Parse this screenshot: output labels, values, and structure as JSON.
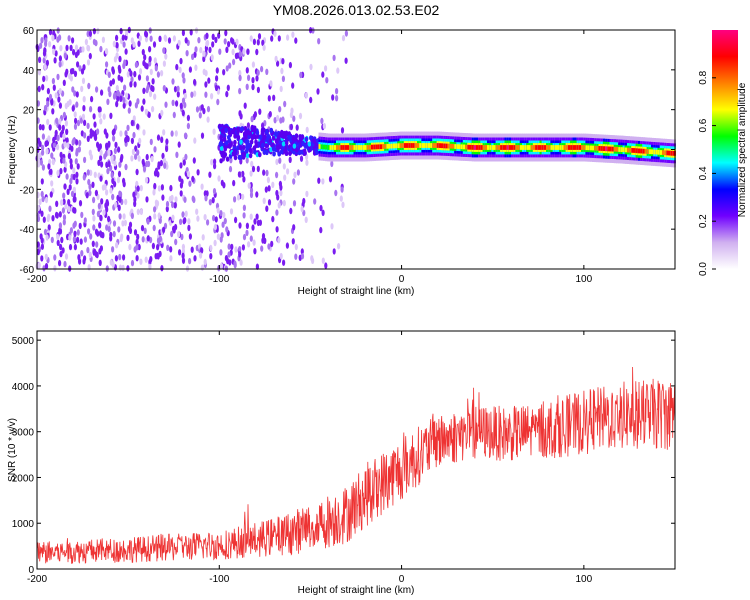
{
  "title": "YM08.2026.013.02.53.E02",
  "chart_data": [
    {
      "type": "heatmap",
      "xlabel": "Height of straight line (km)",
      "ylabel": "Frequency (Hz)",
      "xlim": [
        -200,
        150
      ],
      "ylim": [
        -60,
        60
      ],
      "x_ticks": [
        "-200",
        "-100",
        "0",
        "100"
      ],
      "y_ticks": [
        "60",
        "40",
        "20",
        "0",
        "-20",
        "-40",
        "-60"
      ],
      "colorbar": {
        "label": "Normalized spectral amplitude",
        "range": [
          0.0,
          1.0
        ],
        "ticks": [
          "0.0",
          "0.2",
          "0.4",
          "0.6",
          "0.8"
        ],
        "colors": [
          "#ffffff",
          "#d0b0f0",
          "#7000ff",
          "#0000ff",
          "#00ffff",
          "#00ff00",
          "#ffff00",
          "#ff8000",
          "#ff0000",
          "#ff0080"
        ]
      },
      "ridge": {
        "description_values": "dominant energy near 0 Hz",
        "x": [
          -100,
          -80,
          -60,
          -40,
          -20,
          0,
          20,
          40,
          60,
          80,
          100,
          120,
          150
        ],
        "y": [
          3,
          4,
          3,
          1,
          1,
          2,
          2,
          1,
          1,
          1,
          1,
          0,
          -2
        ],
        "amplitude": [
          0.3,
          0.35,
          0.4,
          0.85,
          0.9,
          0.9,
          0.9,
          0.95,
          0.95,
          0.9,
          0.95,
          0.95,
          0.9
        ]
      },
      "noise_extent_x": [
        -200,
        -30
      ]
    },
    {
      "type": "line",
      "xlabel": "Height of straight line (km)",
      "ylabel": "SNR (10 * v/v)",
      "xlim": [
        -200,
        150
      ],
      "ylim": [
        0,
        5200
      ],
      "x_ticks": [
        "-200",
        "-100",
        "0",
        "100"
      ],
      "y_ticks": [
        "0",
        "1000",
        "2000",
        "3000",
        "4000",
        "5000"
      ],
      "series": [
        {
          "color": "#ee3333",
          "trend_x": [
            -200,
            -150,
            -100,
            -70,
            -50,
            -30,
            -20,
            -10,
            0,
            20,
            40,
            60,
            80,
            100,
            120,
            150
          ],
          "trend_y": [
            350,
            420,
            520,
            700,
            900,
            1200,
            1600,
            1900,
            2200,
            2800,
            3000,
            2950,
            3050,
            3200,
            3350,
            3400
          ],
          "spread": [
            250,
            280,
            320,
            420,
            550,
            650,
            700,
            700,
            700,
            600,
            600,
            600,
            650,
            700,
            750,
            800
          ]
        }
      ]
    }
  ]
}
